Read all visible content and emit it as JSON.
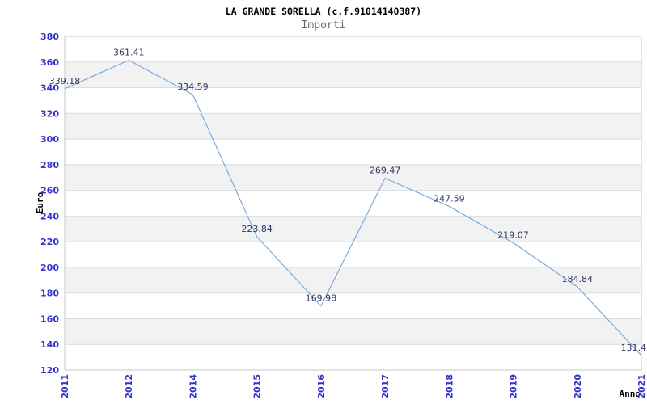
{
  "chart_data": {
    "type": "line",
    "title": "LA GRANDE SORELLA (c.f.91014140387)",
    "subtitle": "Importi",
    "xlabel": "Anno",
    "ylabel": "Euro",
    "categories": [
      "2011",
      "2012",
      "2014",
      "2015",
      "2016",
      "2017",
      "2018",
      "2019",
      "2020",
      "2021"
    ],
    "values": [
      339.18,
      361.41,
      334.59,
      223.84,
      169.98,
      269.47,
      247.59,
      219.07,
      184.84,
      131.4
    ],
    "point_labels": [
      "339.18",
      "361.41",
      "334.59",
      "223.84",
      "169.98",
      "269.47",
      "247.59",
      "219.07",
      "184.84",
      "131.4"
    ],
    "ylim": [
      120,
      380
    ],
    "ytick_step": 20,
    "grid": true,
    "banded_background": true,
    "legend": "none",
    "colors": {
      "line": "#7aaade",
      "band": "#f2f2f2",
      "gridline": "#dcdcdc",
      "plot_border": "#c9c9c9",
      "tick_label": "#3333cc",
      "point_label": "#333366",
      "title": "#000000",
      "subtitle": "#666666",
      "axis_label": "#000000",
      "background": "#ffffff"
    }
  }
}
